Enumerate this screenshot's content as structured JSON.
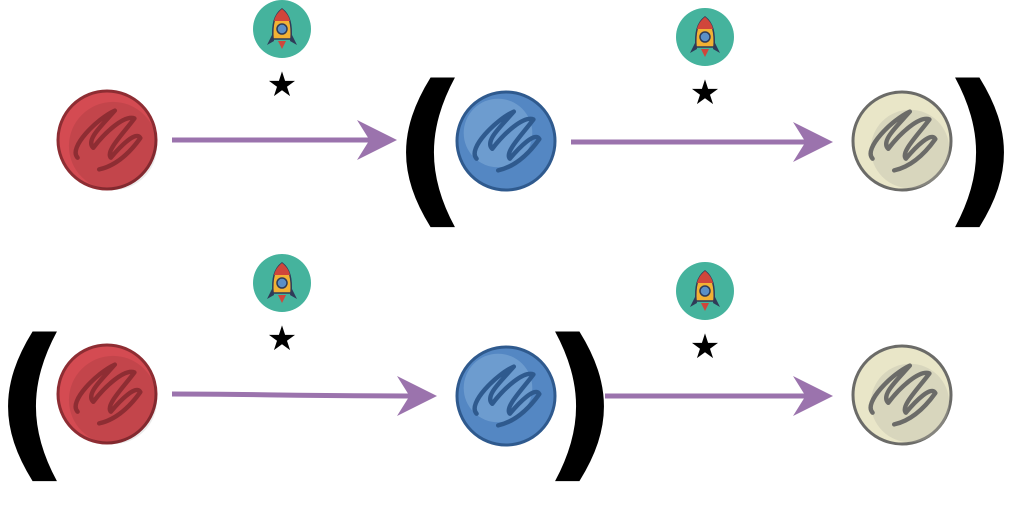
{
  "diagram": {
    "colors": {
      "arrow": "#9b73ad",
      "rocket_badge": "#45b39d",
      "planet_red": "#d44b52",
      "planet_blue": "#5487c3",
      "planet_cream": "#e9e6c8",
      "paren": "#000000"
    },
    "symbols": {
      "star": "★",
      "paren_open": "(",
      "paren_close": ")"
    },
    "rows": [
      {
        "planets": [
          "red-planet",
          "blue-planet",
          "cream-planet"
        ],
        "grouping": "second-and-third",
        "transitions": [
          "rocket-icon",
          "rocket-icon"
        ]
      },
      {
        "planets": [
          "red-planet",
          "blue-planet",
          "cream-planet"
        ],
        "grouping": "first-and-second",
        "transitions": [
          "rocket-icon",
          "rocket-icon"
        ]
      }
    ]
  }
}
